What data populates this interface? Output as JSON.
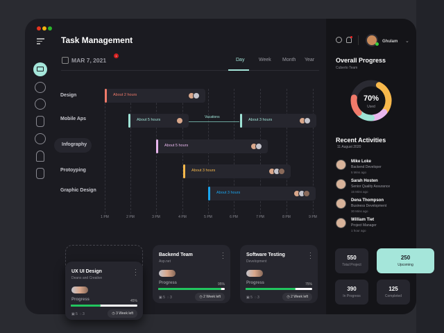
{
  "header": {
    "title": "Task Management",
    "date": "MAR 7, 2021",
    "notification_count": "1",
    "user_name": "Ghulam"
  },
  "tabs": [
    {
      "label": "Day",
      "active": true
    },
    {
      "label": "Week"
    },
    {
      "label": "Month"
    },
    {
      "label": "Year"
    }
  ],
  "sidebar": {
    "items": [
      "monitor-icon",
      "document-icon",
      "gauge-icon",
      "file-icon",
      "alarm-icon",
      "bell-icon",
      "book-icon"
    ]
  },
  "gantt": {
    "rows": [
      "Design",
      "Mobile Aps",
      "Infography",
      "Protoyping",
      "Graphic Design"
    ],
    "ticks": [
      "1 PM",
      "2 PM",
      "3 PM",
      "4 PM",
      "5 PM",
      "6 PM",
      "7 PM",
      "8 PM",
      "9 PM"
    ],
    "tasks": [
      {
        "row": "Design",
        "label": "About 2 hours",
        "color": "#f07a6a"
      },
      {
        "row": "Mobile Aps",
        "label": "About 5 hours",
        "color": "#9fe3d6"
      },
      {
        "row": "Mobile Aps",
        "label": "About 3 hours",
        "color": "#9fe3d6"
      },
      {
        "row": "Infography",
        "label": "About 5 hours",
        "color": "#e9b7ee"
      },
      {
        "row": "Protoyping",
        "label": "About 3 hours",
        "color": "#f7b84b"
      },
      {
        "row": "Graphic Design",
        "label": "About 3 hours",
        "color": "#1aa6f0"
      }
    ],
    "gap_label": "Vacations"
  },
  "cards": [
    {
      "title": "UX UI Design",
      "subtitle": "Deans and Creative",
      "progress_label": "Progress",
      "progress": "45%",
      "files": "5",
      "comments": "3",
      "time_left": "3 Week left"
    },
    {
      "title": "Backend Team",
      "subtitle": "Asp.net",
      "progress_label": "Progress",
      "progress": "95%",
      "files": "5",
      "comments": "3",
      "time_left": "2 Week left"
    },
    {
      "title": "Software Testing",
      "subtitle": "Development",
      "progress_label": "Progress",
      "progress": "75%",
      "files": "5",
      "comments": "3",
      "time_left": "2 Week left"
    }
  ],
  "overall": {
    "title": "Overall Progress",
    "team": "Cuberto Team",
    "percent": "70%",
    "used_label": "Used",
    "segments": [
      {
        "color": "#f7b84b"
      },
      {
        "color": "#e9b7ee"
      },
      {
        "color": "#9fe3d6"
      },
      {
        "color": "#f07a6a"
      }
    ]
  },
  "activities": {
    "title": "Recent Activities",
    "date": "11 August 2020",
    "items": [
      {
        "name": "Mike Loke",
        "role": "Backend Developer",
        "time": "5 Mins ago"
      },
      {
        "name": "Sarah Hosten",
        "role": "Senior Quality Assurance",
        "time": "15 Mins ago"
      },
      {
        "name": "Dena Thompson",
        "role": "Business Development",
        "time": "30 Mins ago"
      },
      {
        "name": "William Tiet",
        "role": "Project Manager",
        "time": "1 hour ago"
      }
    ]
  },
  "stats": [
    {
      "value": "550",
      "label": "Total Project"
    },
    {
      "value": "250",
      "label": "Upcoming",
      "highlight": true
    },
    {
      "value": "390",
      "label": "In Progress"
    },
    {
      "value": "125",
      "label": "Completed"
    }
  ],
  "colors": {
    "accent": "#a5e6da",
    "progress": "#22c55e"
  }
}
